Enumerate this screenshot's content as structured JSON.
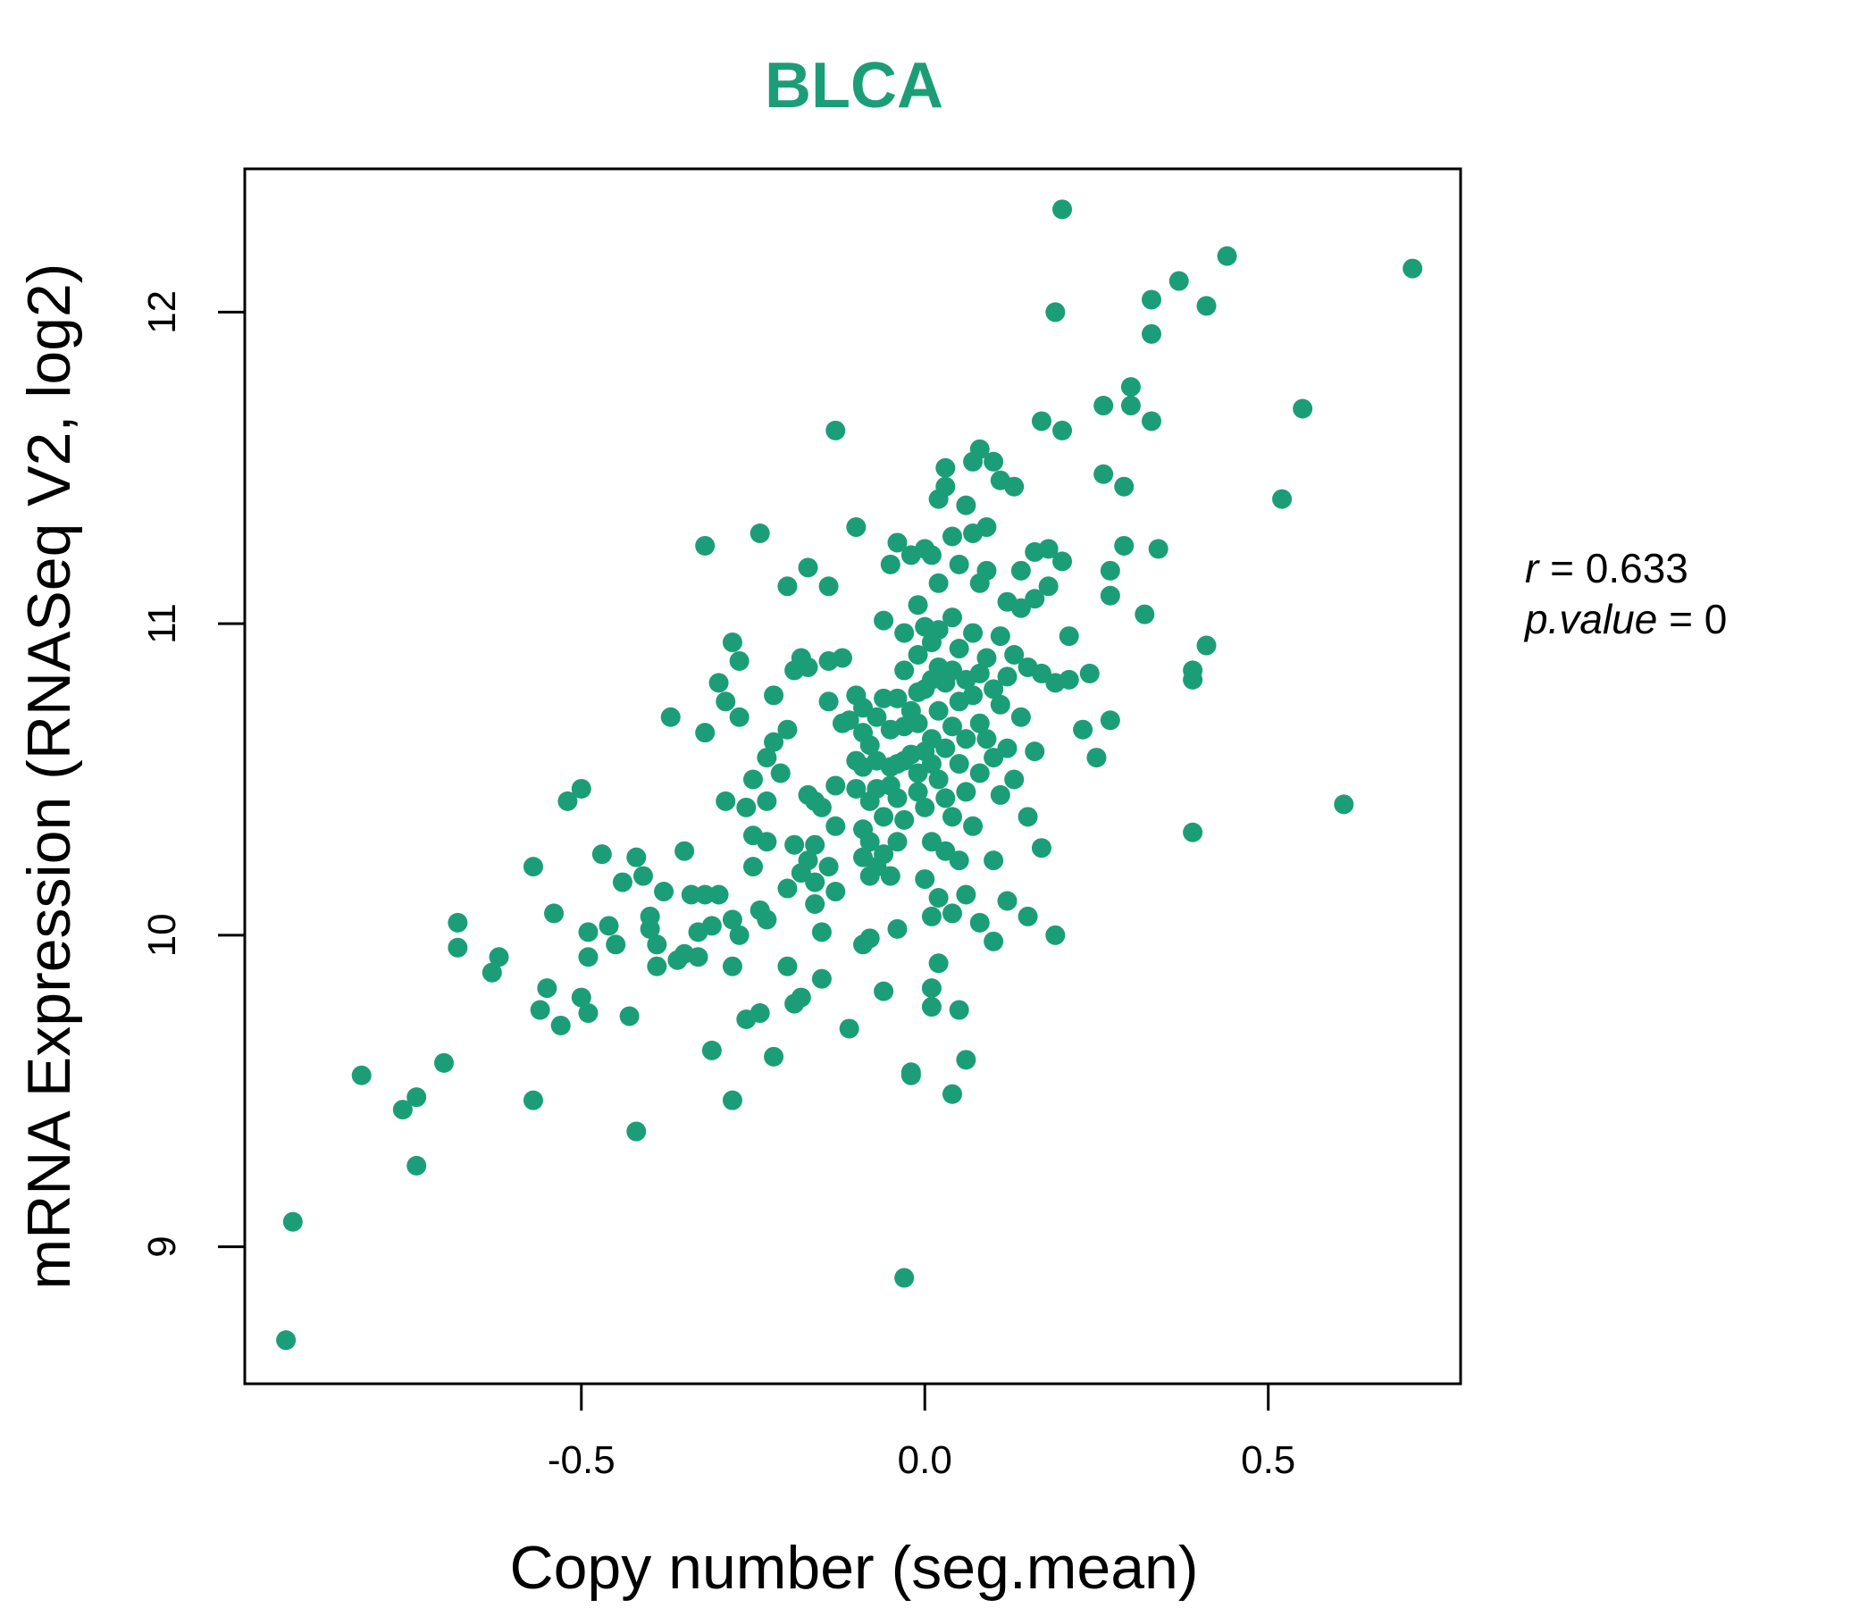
{
  "chart_data": {
    "type": "scatter",
    "title": "BLCA",
    "xlabel": "Copy number (seg.mean)",
    "ylabel": "mRNA Expression (RNASeq V2, log2)",
    "xlim": [
      -0.99,
      0.78
    ],
    "ylim": [
      8.56,
      12.46
    ],
    "x_ticks": [
      -0.5,
      0.0,
      0.5
    ],
    "x_tick_labels": [
      "-0.5",
      "0.0",
      "0.5"
    ],
    "y_ticks": [
      9,
      10,
      11,
      12
    ],
    "y_tick_labels": [
      "9",
      "10",
      "11",
      "12"
    ],
    "grid": false,
    "point_color": "#1b9e77",
    "stats": {
      "r_label": "r",
      "r_value": "0.633",
      "p_label": "p.value",
      "p_value": "0"
    },
    "points": [
      [
        -0.93,
        8.7
      ],
      [
        -0.92,
        9.08
      ],
      [
        -0.82,
        9.55
      ],
      [
        -0.76,
        9.44
      ],
      [
        -0.74,
        9.48
      ],
      [
        -0.74,
        9.26
      ],
      [
        -0.7,
        9.59
      ],
      [
        -0.68,
        10.04
      ],
      [
        -0.68,
        9.96
      ],
      [
        -0.63,
        9.88
      ],
      [
        -0.62,
        9.93
      ],
      [
        -0.57,
        9.47
      ],
      [
        -0.57,
        10.22
      ],
      [
        -0.56,
        9.76
      ],
      [
        -0.55,
        9.83
      ],
      [
        -0.54,
        10.07
      ],
      [
        -0.53,
        9.71
      ],
      [
        -0.52,
        10.43
      ],
      [
        -0.5,
        9.8
      ],
      [
        -0.5,
        10.47
      ],
      [
        -0.49,
        10.01
      ],
      [
        -0.49,
        9.75
      ],
      [
        -0.49,
        9.93
      ],
      [
        -0.47,
        10.26
      ],
      [
        -0.46,
        10.03
      ],
      [
        -0.45,
        9.97
      ],
      [
        -0.44,
        10.17
      ],
      [
        -0.43,
        9.74
      ],
      [
        -0.42,
        10.25
      ],
      [
        -0.42,
        9.37
      ],
      [
        -0.41,
        10.19
      ],
      [
        -0.4,
        10.02
      ],
      [
        -0.4,
        10.06
      ],
      [
        -0.39,
        9.9
      ],
      [
        -0.39,
        9.97
      ],
      [
        -0.38,
        10.14
      ],
      [
        -0.37,
        10.7
      ],
      [
        -0.36,
        9.92
      ],
      [
        -0.35,
        10.27
      ],
      [
        -0.35,
        9.94
      ],
      [
        -0.34,
        10.13
      ],
      [
        -0.33,
        10.01
      ],
      [
        -0.33,
        9.93
      ],
      [
        -0.32,
        10.13
      ],
      [
        -0.32,
        11.25
      ],
      [
        -0.32,
        10.65
      ],
      [
        -0.31,
        9.63
      ],
      [
        -0.31,
        10.03
      ],
      [
        -0.3,
        10.81
      ],
      [
        -0.3,
        10.13
      ],
      [
        -0.29,
        10.43
      ],
      [
        -0.29,
        10.75
      ],
      [
        -0.28,
        9.9
      ],
      [
        -0.28,
        10.94
      ],
      [
        -0.28,
        9.47
      ],
      [
        -0.28,
        10.05
      ],
      [
        -0.27,
        10.88
      ],
      [
        -0.27,
        10.7
      ],
      [
        -0.27,
        10.0
      ],
      [
        -0.26,
        10.41
      ],
      [
        -0.26,
        9.73
      ],
      [
        -0.25,
        10.32
      ],
      [
        -0.25,
        10.5
      ],
      [
        -0.25,
        10.22
      ],
      [
        -0.24,
        11.29
      ],
      [
        -0.24,
        10.08
      ],
      [
        -0.24,
        9.75
      ],
      [
        -0.23,
        10.57
      ],
      [
        -0.23,
        10.3
      ],
      [
        -0.23,
        10.43
      ],
      [
        -0.23,
        10.05
      ],
      [
        -0.22,
        10.62
      ],
      [
        -0.22,
        10.77
      ],
      [
        -0.22,
        9.61
      ],
      [
        -0.21,
        10.52
      ],
      [
        -0.2,
        10.15
      ],
      [
        -0.2,
        10.66
      ],
      [
        -0.2,
        11.12
      ],
      [
        -0.2,
        9.9
      ],
      [
        -0.19,
        9.78
      ],
      [
        -0.19,
        10.29
      ],
      [
        -0.19,
        10.85
      ],
      [
        -0.18,
        10.89
      ],
      [
        -0.18,
        10.2
      ],
      [
        -0.18,
        9.8
      ],
      [
        -0.17,
        10.45
      ],
      [
        -0.17,
        10.86
      ],
      [
        -0.17,
        11.18
      ],
      [
        -0.17,
        10.24
      ],
      [
        -0.16,
        10.1
      ],
      [
        -0.16,
        10.17
      ],
      [
        -0.16,
        10.29
      ],
      [
        -0.16,
        10.43
      ],
      [
        -0.15,
        9.86
      ],
      [
        -0.15,
        10.01
      ],
      [
        -0.15,
        10.41
      ],
      [
        -0.14,
        10.22
      ],
      [
        -0.14,
        10.88
      ],
      [
        -0.14,
        10.75
      ],
      [
        -0.14,
        11.12
      ],
      [
        -0.13,
        10.14
      ],
      [
        -0.13,
        10.35
      ],
      [
        -0.13,
        10.48
      ],
      [
        -0.13,
        11.62
      ],
      [
        -0.12,
        10.89
      ],
      [
        -0.12,
        10.68
      ],
      [
        -0.11,
        10.69
      ],
      [
        -0.11,
        9.7
      ],
      [
        -0.1,
        10.77
      ],
      [
        -0.1,
        11.31
      ],
      [
        -0.1,
        10.56
      ],
      [
        -0.1,
        10.47
      ],
      [
        -0.09,
        10.73
      ],
      [
        -0.09,
        10.54
      ],
      [
        -0.09,
        9.97
      ],
      [
        -0.09,
        10.25
      ],
      [
        -0.09,
        10.34
      ],
      [
        -0.09,
        10.65
      ],
      [
        -0.08,
        10.61
      ],
      [
        -0.08,
        10.43
      ],
      [
        -0.08,
        10.19
      ],
      [
        -0.08,
        10.3
      ],
      [
        -0.08,
        9.99
      ],
      [
        -0.07,
        10.7
      ],
      [
        -0.07,
        10.47
      ],
      [
        -0.07,
        10.56
      ],
      [
        -0.07,
        10.22
      ],
      [
        -0.06,
        11.01
      ],
      [
        -0.06,
        10.76
      ],
      [
        -0.06,
        10.38
      ],
      [
        -0.06,
        10.26
      ],
      [
        -0.06,
        9.82
      ],
      [
        -0.05,
        10.66
      ],
      [
        -0.05,
        10.54
      ],
      [
        -0.05,
        11.19
      ],
      [
        -0.05,
        10.48
      ],
      [
        -0.05,
        10.19
      ],
      [
        -0.04,
        10.76
      ],
      [
        -0.04,
        10.55
      ],
      [
        -0.04,
        10.44
      ],
      [
        -0.04,
        11.26
      ],
      [
        -0.04,
        10.3
      ],
      [
        -0.04,
        10.02
      ],
      [
        -0.03,
        10.67
      ],
      [
        -0.03,
        10.97
      ],
      [
        -0.03,
        10.56
      ],
      [
        -0.03,
        10.85
      ],
      [
        -0.03,
        10.37
      ],
      [
        -0.03,
        8.9
      ],
      [
        -0.02,
        10.58
      ],
      [
        -0.02,
        10.72
      ],
      [
        -0.02,
        11.22
      ],
      [
        -0.02,
        9.56
      ],
      [
        -0.02,
        9.55
      ],
      [
        -0.01,
        10.78
      ],
      [
        -0.01,
        10.52
      ],
      [
        -0.01,
        11.06
      ],
      [
        -0.01,
        10.68
      ],
      [
        -0.01,
        10.9
      ],
      [
        -0.01,
        10.46
      ],
      [
        0.0,
        10.79
      ],
      [
        0.0,
        10.59
      ],
      [
        0.0,
        10.18
      ],
      [
        0.0,
        11.24
      ],
      [
        0.0,
        10.99
      ],
      [
        0.0,
        10.41
      ],
      [
        0.01,
        10.82
      ],
      [
        0.01,
        10.55
      ],
      [
        0.01,
        11.22
      ],
      [
        0.01,
        10.94
      ],
      [
        0.01,
        10.63
      ],
      [
        0.01,
        10.3
      ],
      [
        0.01,
        10.06
      ],
      [
        0.01,
        9.83
      ],
      [
        0.01,
        9.77
      ],
      [
        0.02,
        10.86
      ],
      [
        0.02,
        10.72
      ],
      [
        0.02,
        10.5
      ],
      [
        0.02,
        11.13
      ],
      [
        0.02,
        11.4
      ],
      [
        0.02,
        10.98
      ],
      [
        0.02,
        10.12
      ],
      [
        0.02,
        9.91
      ],
      [
        0.03,
        10.81
      ],
      [
        0.03,
        11.5
      ],
      [
        0.03,
        11.44
      ],
      [
        0.03,
        10.6
      ],
      [
        0.03,
        10.44
      ],
      [
        0.03,
        10.27
      ],
      [
        0.04,
        10.85
      ],
      [
        0.04,
        11.28
      ],
      [
        0.04,
        11.02
      ],
      [
        0.04,
        10.67
      ],
      [
        0.04,
        10.38
      ],
      [
        0.04,
        10.07
      ],
      [
        0.04,
        9.49
      ],
      [
        0.05,
        10.75
      ],
      [
        0.05,
        10.55
      ],
      [
        0.05,
        11.19
      ],
      [
        0.05,
        10.92
      ],
      [
        0.05,
        10.24
      ],
      [
        0.05,
        9.76
      ],
      [
        0.06,
        10.82
      ],
      [
        0.06,
        11.38
      ],
      [
        0.06,
        10.63
      ],
      [
        0.06,
        10.46
      ],
      [
        0.06,
        10.13
      ],
      [
        0.06,
        9.6
      ],
      [
        0.07,
        11.52
      ],
      [
        0.07,
        10.77
      ],
      [
        0.07,
        11.29
      ],
      [
        0.07,
        10.97
      ],
      [
        0.07,
        10.35
      ],
      [
        0.08,
        10.84
      ],
      [
        0.08,
        11.56
      ],
      [
        0.08,
        10.68
      ],
      [
        0.08,
        11.13
      ],
      [
        0.08,
        10.52
      ],
      [
        0.08,
        10.04
      ],
      [
        0.09,
        11.31
      ],
      [
        0.09,
        11.17
      ],
      [
        0.09,
        10.89
      ],
      [
        0.09,
        10.63
      ],
      [
        0.1,
        11.52
      ],
      [
        0.1,
        10.79
      ],
      [
        0.1,
        10.57
      ],
      [
        0.1,
        10.24
      ],
      [
        0.1,
        9.98
      ],
      [
        0.11,
        10.96
      ],
      [
        0.11,
        10.74
      ],
      [
        0.11,
        11.46
      ],
      [
        0.11,
        10.45
      ],
      [
        0.12,
        11.07
      ],
      [
        0.12,
        10.83
      ],
      [
        0.12,
        10.6
      ],
      [
        0.12,
        10.11
      ],
      [
        0.13,
        11.44
      ],
      [
        0.13,
        10.9
      ],
      [
        0.13,
        10.5
      ],
      [
        0.14,
        11.17
      ],
      [
        0.14,
        10.7
      ],
      [
        0.14,
        11.05
      ],
      [
        0.15,
        10.86
      ],
      [
        0.15,
        10.38
      ],
      [
        0.15,
        10.06
      ],
      [
        0.16,
        11.23
      ],
      [
        0.16,
        11.08
      ],
      [
        0.16,
        10.59
      ],
      [
        0.17,
        11.65
      ],
      [
        0.17,
        10.84
      ],
      [
        0.17,
        10.28
      ],
      [
        0.18,
        11.24
      ],
      [
        0.18,
        11.12
      ],
      [
        0.19,
        12.0
      ],
      [
        0.19,
        10.81
      ],
      [
        0.19,
        10.0
      ],
      [
        0.2,
        11.62
      ],
      [
        0.2,
        11.2
      ],
      [
        0.2,
        12.33
      ],
      [
        0.21,
        10.96
      ],
      [
        0.21,
        10.82
      ],
      [
        0.23,
        10.66
      ],
      [
        0.24,
        10.84
      ],
      [
        0.25,
        10.57
      ],
      [
        0.26,
        11.7
      ],
      [
        0.26,
        11.48
      ],
      [
        0.27,
        11.09
      ],
      [
        0.27,
        11.17
      ],
      [
        0.27,
        10.69
      ],
      [
        0.29,
        11.44
      ],
      [
        0.29,
        11.25
      ],
      [
        0.3,
        11.76
      ],
      [
        0.3,
        11.7
      ],
      [
        0.32,
        11.03
      ],
      [
        0.33,
        12.04
      ],
      [
        0.33,
        11.65
      ],
      [
        0.33,
        11.93
      ],
      [
        0.34,
        11.24
      ],
      [
        0.37,
        12.1
      ],
      [
        0.39,
        10.85
      ],
      [
        0.39,
        10.82
      ],
      [
        0.39,
        10.33
      ],
      [
        0.41,
        12.02
      ],
      [
        0.41,
        10.93
      ],
      [
        0.44,
        12.18
      ],
      [
        0.52,
        11.4
      ],
      [
        0.55,
        11.69
      ],
      [
        0.61,
        10.42
      ],
      [
        0.71,
        12.14
      ]
    ]
  }
}
